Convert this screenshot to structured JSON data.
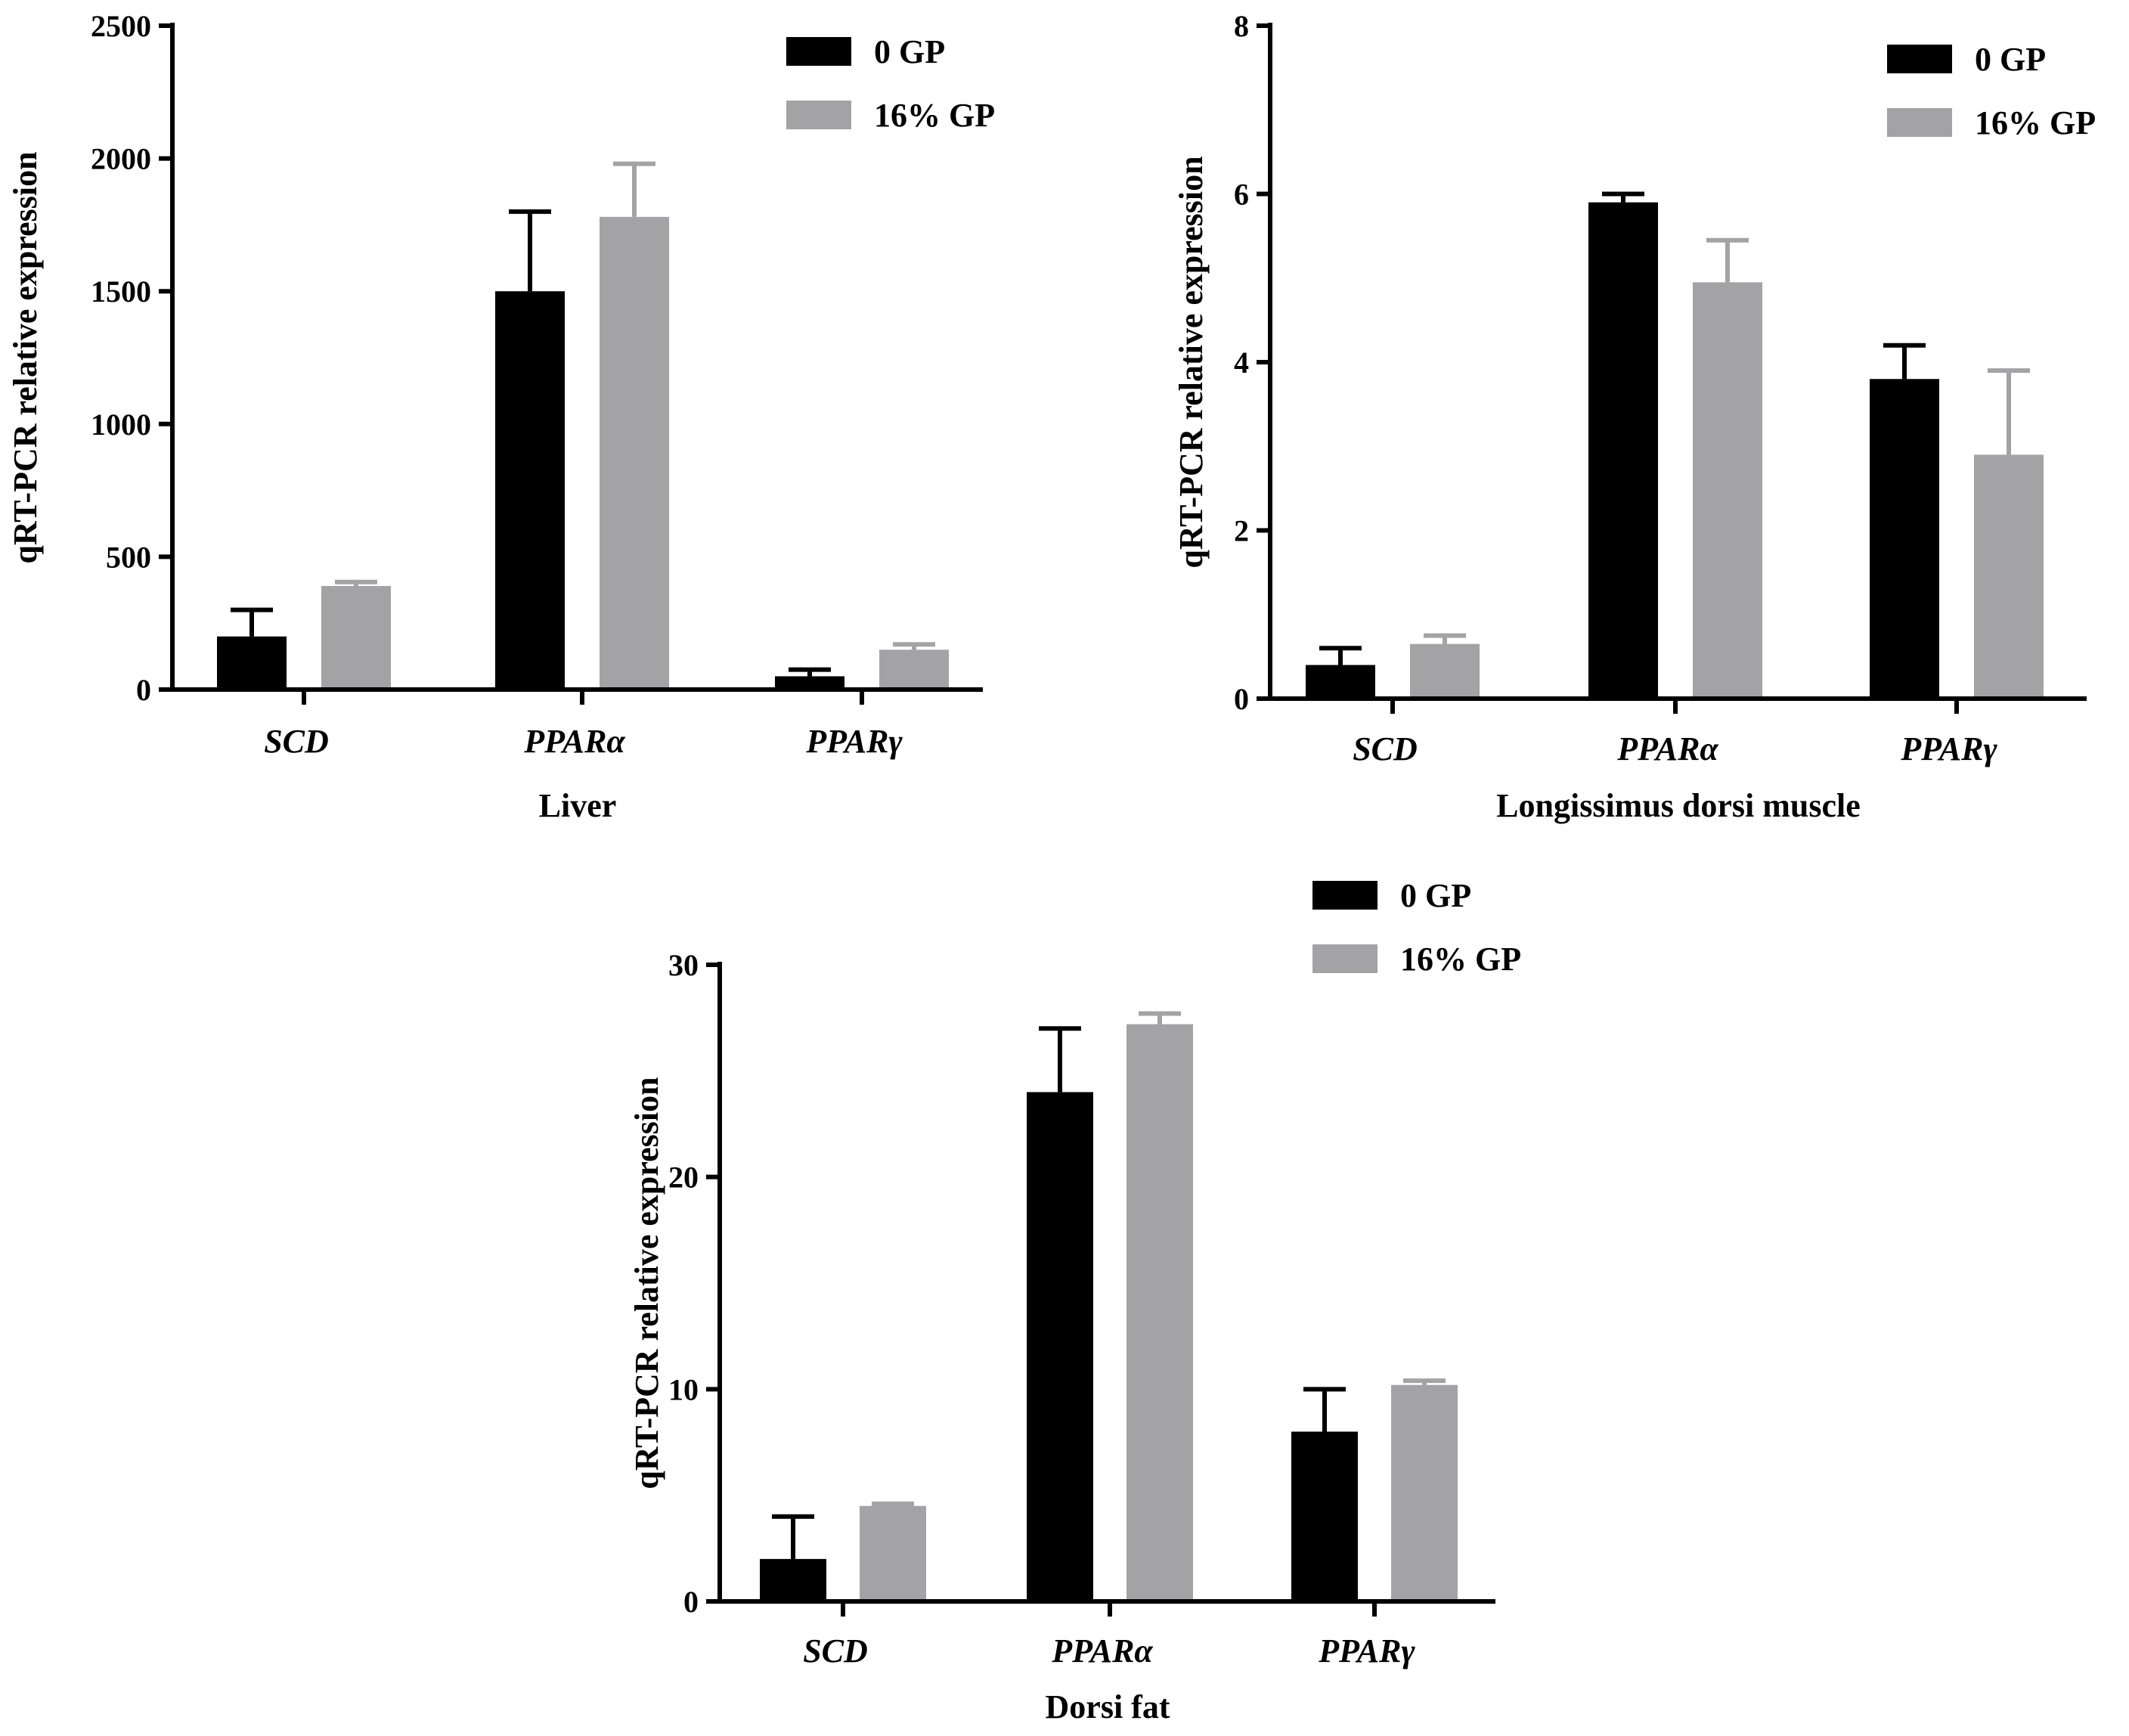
{
  "colors": {
    "series_0": "#000000",
    "series_1": "#a3a3a6"
  },
  "chart_data": [
    {
      "type": "bar",
      "title": "",
      "xlabel": "Liver",
      "ylabel": "qRT-PCR relative expression",
      "ylim": [
        0,
        2500
      ],
      "yticks": [
        0,
        500,
        1000,
        1500,
        2000,
        2500
      ],
      "categories": [
        "SCD",
        "PPARα",
        "PPARγ"
      ],
      "series": [
        {
          "name": "0 GP",
          "values": [
            200,
            1500,
            50
          ],
          "errors": [
            100,
            300,
            25
          ]
        },
        {
          "name": "16% GP",
          "values": [
            390,
            1780,
            150
          ],
          "errors": [
            15,
            200,
            20
          ]
        }
      ],
      "legend": "top-right",
      "grid": false
    },
    {
      "type": "bar",
      "title": "",
      "xlabel": "Longissimus dorsi muscle",
      "ylabel": "qRT-PCR relative expression",
      "ylim": [
        0,
        8
      ],
      "yticks": [
        0,
        2,
        4,
        6,
        8
      ],
      "categories": [
        "SCD",
        "PPARα",
        "PPARγ"
      ],
      "series": [
        {
          "name": "0 GP",
          "values": [
            0.4,
            5.9,
            3.8
          ],
          "errors": [
            0.2,
            0.1,
            0.4
          ]
        },
        {
          "name": "16% GP",
          "values": [
            0.65,
            4.95,
            2.9
          ],
          "errors": [
            0.1,
            0.5,
            1.0
          ]
        }
      ],
      "legend": "top-right",
      "grid": false
    },
    {
      "type": "bar",
      "title": "",
      "xlabel": "Dorsi fat",
      "ylabel": "qRT-PCR relative expression",
      "ylim": [
        0,
        30
      ],
      "yticks": [
        0,
        10,
        20,
        30
      ],
      "categories": [
        "SCD",
        "PPARα",
        "PPARγ"
      ],
      "series": [
        {
          "name": "0 GP",
          "values": [
            2,
            24,
            8
          ],
          "errors": [
            2,
            3,
            2
          ]
        },
        {
          "name": "16% GP",
          "values": [
            4.5,
            27.2,
            10.2
          ],
          "errors": [
            0.1,
            0.5,
            0.2
          ]
        }
      ],
      "legend": "top-left",
      "grid": false
    }
  ]
}
